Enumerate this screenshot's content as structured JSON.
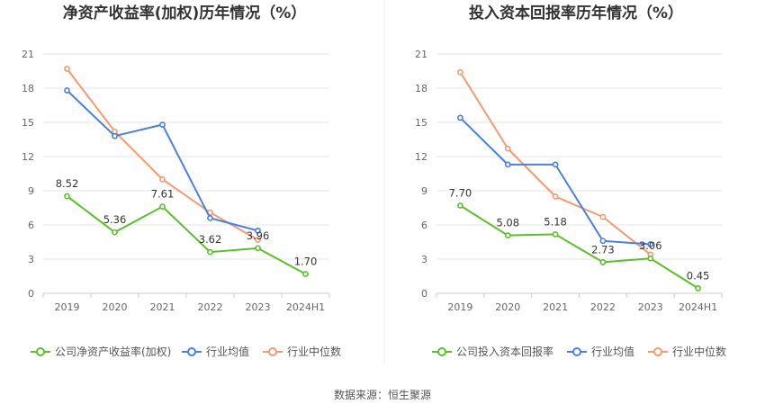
{
  "source_text": "数据来源：恒生聚源",
  "colors": {
    "company": "#5cbf2a",
    "industry_avg": "#4a7fde",
    "industry_median": "#f29a72"
  },
  "chart_data": [
    {
      "type": "line",
      "title": "净资产收益率(加权)历年情况（%）",
      "categories": [
        "2019",
        "2020",
        "2021",
        "2022",
        "2023",
        "2024H1"
      ],
      "yticks": [
        "0",
        "3",
        "6",
        "9",
        "12",
        "15",
        "18",
        "21"
      ],
      "ylim": [
        0,
        21
      ],
      "grid": true,
      "legend_position": "bottom",
      "series": [
        {
          "name": "公司净资产收益率(加权)",
          "color": "#5cbf2a",
          "values": [
            8.52,
            5.36,
            7.61,
            3.62,
            3.96,
            1.7
          ],
          "labels": [
            "8.52",
            "5.36",
            "7.61",
            "3.62",
            "3.96",
            "1.70"
          ]
        },
        {
          "name": "行业均值",
          "color": "#4a7fde",
          "values": [
            17.8,
            13.8,
            14.8,
            6.6,
            5.5,
            null
          ]
        },
        {
          "name": "行业中位数",
          "color": "#f29a72",
          "values": [
            19.7,
            14.2,
            10.0,
            7.1,
            4.7,
            null
          ]
        }
      ]
    },
    {
      "type": "line",
      "title": "投入资本回报率历年情况（%）",
      "categories": [
        "2019",
        "2020",
        "2021",
        "2022",
        "2023",
        "2024H1"
      ],
      "yticks": [
        "0",
        "3",
        "6",
        "9",
        "12",
        "15",
        "18",
        "21"
      ],
      "ylim": [
        0,
        21
      ],
      "grid": true,
      "legend_position": "bottom",
      "series": [
        {
          "name": "公司投入资本回报率",
          "color": "#5cbf2a",
          "values": [
            7.7,
            5.08,
            5.18,
            2.73,
            3.06,
            0.45
          ],
          "labels": [
            "7.70",
            "5.08",
            "5.18",
            "2.73",
            "3.06",
            "0.45"
          ]
        },
        {
          "name": "行业均值",
          "color": "#4a7fde",
          "values": [
            15.4,
            11.3,
            11.3,
            4.6,
            4.3,
            null
          ]
        },
        {
          "name": "行业中位数",
          "color": "#f29a72",
          "values": [
            19.4,
            12.7,
            8.5,
            6.7,
            3.4,
            null
          ]
        }
      ]
    }
  ]
}
